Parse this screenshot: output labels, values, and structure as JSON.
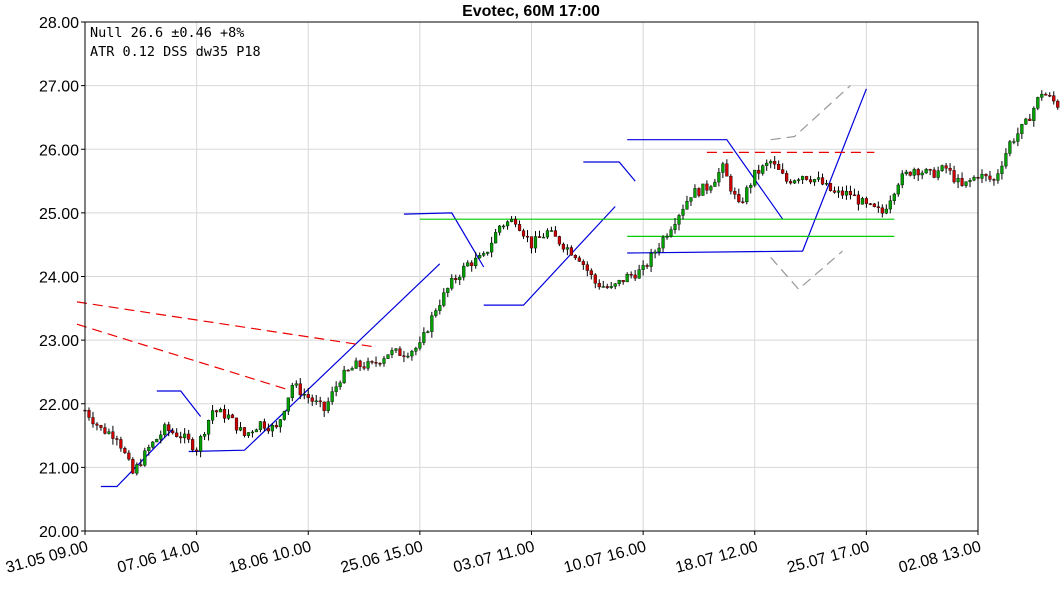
{
  "chart_data": {
    "type": "candlestick",
    "title": "Evotec, 60M 17:00",
    "info_lines": [
      "Null 26.6 ±0.46 +8%",
      "ATR  0.12 DSS dw35 P18"
    ],
    "ylim": [
      20.0,
      28.0
    ],
    "y_ticks": [
      "20.00",
      "21.00",
      "22.00",
      "23.00",
      "24.00",
      "25.00",
      "26.00",
      "27.00",
      "28.00"
    ],
    "x_ticks": [
      "31.05 09.00",
      "07.06 14.00",
      "18.06 10.00",
      "25.06 15.00",
      "03.07 11.00",
      "10.07 16.00",
      "18.07 12.00",
      "25.07 17.00",
      "02.08 13.00"
    ],
    "grid": true,
    "colors": {
      "up": "#00a000",
      "down": "#cc0000",
      "wick": "#000000",
      "blue": "#0000dd",
      "red": "#ee0000",
      "green": "#00cc00",
      "gray": "#999999",
      "grid": "#d8d8d8"
    },
    "close_path": [
      [
        0,
        21.9
      ],
      [
        2,
        21.6
      ],
      [
        4,
        21.5
      ],
      [
        6,
        20.9
      ],
      [
        8,
        21.3
      ],
      [
        10,
        21.6
      ],
      [
        12,
        21.5
      ],
      [
        14,
        21.3
      ],
      [
        16,
        21.9
      ],
      [
        18,
        21.8
      ],
      [
        20,
        21.5
      ],
      [
        22,
        21.7
      ],
      [
        24,
        21.6
      ],
      [
        26,
        22.3
      ],
      [
        28,
        22.1
      ],
      [
        30,
        21.9
      ],
      [
        32,
        22.4
      ],
      [
        34,
        22.6
      ],
      [
        36,
        22.6
      ],
      [
        38,
        22.8
      ],
      [
        40,
        22.8
      ],
      [
        42,
        22.9
      ],
      [
        44,
        23.5
      ],
      [
        46,
        23.9
      ],
      [
        48,
        24.2
      ],
      [
        50,
        24.3
      ],
      [
        52,
        24.8
      ],
      [
        54,
        24.9
      ],
      [
        56,
        24.5
      ],
      [
        58,
        24.7
      ],
      [
        60,
        24.5
      ],
      [
        62,
        24.3
      ],
      [
        64,
        23.9
      ],
      [
        66,
        23.8
      ],
      [
        68,
        24.0
      ],
      [
        70,
        24.1
      ],
      [
        72,
        24.5
      ],
      [
        74,
        24.9
      ],
      [
        76,
        25.3
      ],
      [
        78,
        25.4
      ],
      [
        80,
        25.7
      ],
      [
        82,
        25.1
      ],
      [
        84,
        25.6
      ],
      [
        86,
        25.8
      ],
      [
        88,
        25.5
      ],
      [
        90,
        25.6
      ],
      [
        92,
        25.5
      ],
      [
        94,
        25.3
      ],
      [
        96,
        25.3
      ],
      [
        98,
        25.1
      ],
      [
        100,
        25.0
      ],
      [
        102,
        25.5
      ],
      [
        104,
        25.7
      ],
      [
        106,
        25.6
      ],
      [
        108,
        25.7
      ],
      [
        110,
        25.4
      ],
      [
        112,
        25.6
      ],
      [
        114,
        25.5
      ],
      [
        116,
        26.1
      ],
      [
        118,
        26.4
      ],
      [
        120,
        26.9
      ],
      [
        122,
        26.7
      ]
    ],
    "lines": [
      {
        "style": "blue",
        "dash": false,
        "points": [
          [
            2,
            20.7
          ],
          [
            4,
            20.7
          ],
          [
            11,
            21.6
          ]
        ]
      },
      {
        "style": "blue",
        "dash": false,
        "points": [
          [
            9,
            22.2
          ],
          [
            12,
            22.2
          ],
          [
            14.5,
            21.8
          ]
        ]
      },
      {
        "style": "blue",
        "dash": false,
        "points": [
          [
            13,
            21.25
          ],
          [
            20,
            21.27
          ],
          [
            44.5,
            24.2
          ]
        ]
      },
      {
        "style": "blue",
        "dash": false,
        "points": [
          [
            40,
            24.98
          ],
          [
            46,
            25.0
          ],
          [
            50,
            24.15
          ]
        ]
      },
      {
        "style": "blue",
        "dash": false,
        "points": [
          [
            50,
            23.55
          ],
          [
            55,
            23.55
          ],
          [
            66.5,
            25.1
          ]
        ]
      },
      {
        "style": "blue",
        "dash": false,
        "points": [
          [
            62.5,
            25.8
          ],
          [
            67,
            25.8
          ],
          [
            69,
            25.5
          ]
        ]
      },
      {
        "style": "blue",
        "dash": false,
        "points": [
          [
            68,
            26.15
          ],
          [
            80.5,
            26.15
          ],
          [
            87.5,
            24.9
          ]
        ]
      },
      {
        "style": "blue",
        "dash": false,
        "points": [
          [
            68,
            24.37
          ],
          [
            90,
            24.4
          ],
          [
            98,
            26.95
          ]
        ]
      },
      {
        "style": "red",
        "dash": true,
        "points": [
          [
            -1,
            23.6
          ],
          [
            36,
            22.9
          ]
        ]
      },
      {
        "style": "red",
        "dash": true,
        "points": [
          [
            -1,
            23.25
          ],
          [
            26,
            22.2
          ]
        ]
      },
      {
        "style": "red",
        "dash": true,
        "points": [
          [
            78,
            25.95
          ],
          [
            99,
            25.95
          ]
        ]
      },
      {
        "style": "green",
        "dash": false,
        "points": [
          [
            42,
            24.9
          ],
          [
            101.5,
            24.9
          ]
        ]
      },
      {
        "style": "green",
        "dash": false,
        "points": [
          [
            68,
            24.63
          ],
          [
            101.5,
            24.63
          ]
        ]
      },
      {
        "style": "gray",
        "dash": true,
        "points": [
          [
            86,
            26.15
          ],
          [
            89,
            26.2
          ],
          [
            96,
            27.0
          ]
        ]
      },
      {
        "style": "gray",
        "dash": true,
        "points": [
          [
            86,
            24.3
          ],
          [
            89.5,
            23.8
          ],
          [
            95,
            24.4
          ]
        ]
      }
    ]
  }
}
